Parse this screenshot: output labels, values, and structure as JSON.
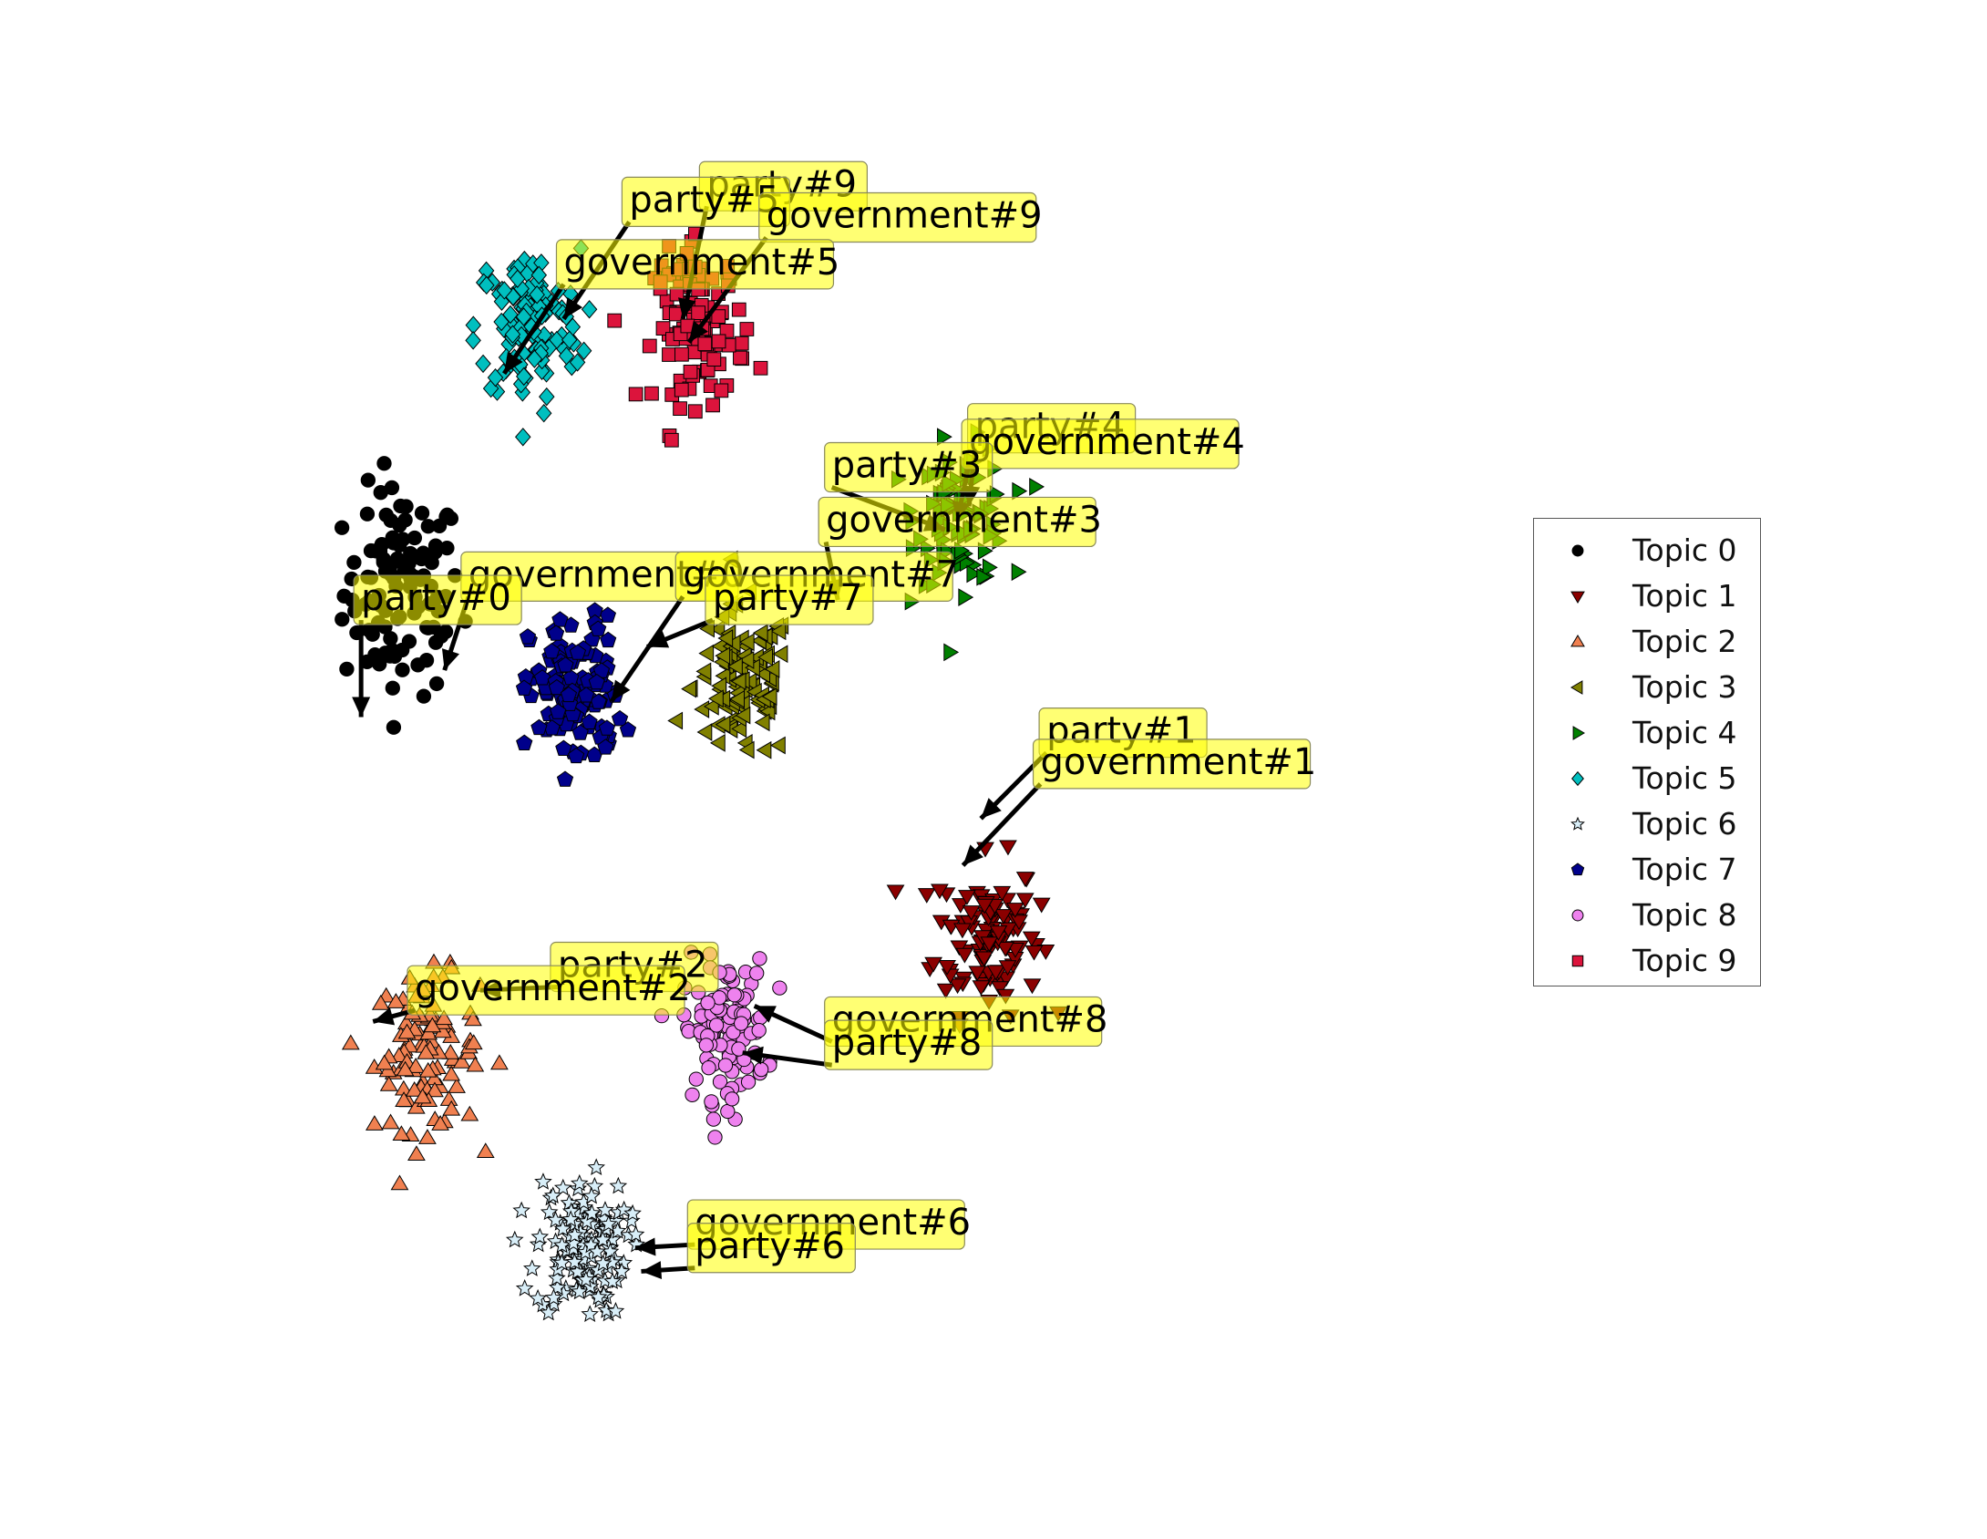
{
  "chart_data": {
    "type": "scatter",
    "title": "",
    "xlabel": "",
    "ylabel": "",
    "axes_visible": false,
    "grid": false,
    "xlim": [
      -52,
      52
    ],
    "ylim": [
      -40,
      40
    ],
    "legend": {
      "placement": "right"
    },
    "series": [
      {
        "name": "Topic 0",
        "marker": "circle",
        "color": "#000000",
        "center": [
          -33.5,
          12.0
        ],
        "spread": [
          4.5,
          6.0
        ],
        "count": 110
      },
      {
        "name": "Topic 1",
        "marker": "triangle-down",
        "color": "#8b0000",
        "center": [
          15.5,
          -10.0
        ],
        "spread": [
          4.0,
          4.5
        ],
        "count": 110
      },
      {
        "name": "Topic 2",
        "marker": "triangle-up",
        "color": "#f08050",
        "center": [
          -31.5,
          -17.5
        ],
        "spread": [
          4.0,
          4.5
        ],
        "count": 110
      },
      {
        "name": "Topic 3",
        "marker": "triangle-left",
        "color": "#808000",
        "center": [
          -5.0,
          6.0
        ],
        "spread": [
          3.8,
          4.5
        ],
        "count": 110
      },
      {
        "name": "Topic 4",
        "marker": "triangle-right",
        "color": "#008000",
        "center": [
          13.5,
          17.0
        ],
        "spread": [
          3.5,
          4.0
        ],
        "count": 100
      },
      {
        "name": "Topic 5",
        "marker": "diamond",
        "color": "#00bfbf",
        "center": [
          -23.0,
          29.0
        ],
        "spread": [
          4.0,
          4.5
        ],
        "count": 120
      },
      {
        "name": "Topic 6",
        "marker": "star",
        "color": "#d8eef8",
        "center": [
          -18.5,
          -30.0
        ],
        "spread": [
          3.5,
          4.0
        ],
        "count": 140
      },
      {
        "name": "Topic 7",
        "marker": "pentagon",
        "color": "#00008b",
        "center": [
          -19.0,
          5.5
        ],
        "spread": [
          3.5,
          4.5
        ],
        "count": 120
      },
      {
        "name": "Topic 8",
        "marker": "circle",
        "color": "#ee82ee",
        "center": [
          -6.5,
          -16.0
        ],
        "spread": [
          3.2,
          4.0
        ],
        "count": 110
      },
      {
        "name": "Topic 9",
        "marker": "square",
        "color": "#dc143c",
        "center": [
          -8.5,
          29.0
        ],
        "spread": [
          3.5,
          4.5
        ],
        "count": 110
      }
    ],
    "annotations": [
      {
        "text": "party#9",
        "xy": [
          -10,
          29.5
        ],
        "xytext": [
          -8,
          38.0
        ]
      },
      {
        "text": "party#5",
        "xy": [
          -20,
          29.5
        ],
        "xytext": [
          -14.5,
          37.0
        ]
      },
      {
        "text": "government#9",
        "xy": [
          -9.5,
          28.0
        ],
        "xytext": [
          -3,
          36.0
        ]
      },
      {
        "text": "government#5",
        "xy": [
          -25,
          26.0
        ],
        "xytext": [
          -20,
          33.0
        ]
      },
      {
        "text": "party#4",
        "xy": [
          14,
          17.5
        ],
        "xytext": [
          14.5,
          22.5
        ]
      },
      {
        "text": "government#4",
        "xy": [
          13,
          16.5
        ],
        "xytext": [
          14,
          21.5
        ]
      },
      {
        "text": "party#3",
        "xy": [
          12,
          16.0
        ],
        "xytext": [
          2.5,
          20.0
        ]
      },
      {
        "text": "government#3",
        "xy": [
          3,
          11.5
        ],
        "xytext": [
          2,
          16.5
        ]
      },
      {
        "text": "government#0",
        "xy": [
          -30,
          7.0
        ],
        "xytext": [
          -28,
          13.0
        ]
      },
      {
        "text": "party#0",
        "xy": [
          -37,
          4.0
        ],
        "xytext": [
          -37,
          11.5
        ]
      },
      {
        "text": "government#7",
        "xy": [
          -16,
          5.0
        ],
        "xytext": [
          -10,
          13.0
        ]
      },
      {
        "text": "party#7",
        "xy": [
          -13,
          8.5
        ],
        "xytext": [
          -7.5,
          11.5
        ]
      },
      {
        "text": "party#1",
        "xy": [
          15,
          -2.5
        ],
        "xytext": [
          20.5,
          3.0
        ]
      },
      {
        "text": "government#1",
        "xy": [
          13.5,
          -5.5
        ],
        "xytext": [
          20,
          1.0
        ]
      },
      {
        "text": "party#2",
        "xy": [
          -27,
          -13.5
        ],
        "xytext": [
          -20.5,
          -12.0
        ]
      },
      {
        "text": "government#2",
        "xy": [
          -36,
          -15.5
        ],
        "xytext": [
          -32.5,
          -13.5
        ]
      },
      {
        "text": "government#8",
        "xy": [
          -4,
          -14.5
        ],
        "xytext": [
          2.5,
          -15.5
        ]
      },
      {
        "text": "party#8",
        "xy": [
          -5,
          -17.5
        ],
        "xytext": [
          2.5,
          -17.0
        ]
      },
      {
        "text": "government#6",
        "xy": [
          -14,
          -30.0
        ],
        "xytext": [
          -9,
          -28.5
        ]
      },
      {
        "text": "party#6",
        "xy": [
          -13.5,
          -31.5
        ],
        "xytext": [
          -9,
          -30.0
        ]
      }
    ]
  },
  "legend_entries": [
    {
      "label": "Topic 0"
    },
    {
      "label": "Topic 1"
    },
    {
      "label": "Topic 2"
    },
    {
      "label": "Topic 3"
    },
    {
      "label": "Topic 4"
    },
    {
      "label": "Topic 5"
    },
    {
      "label": "Topic 6"
    },
    {
      "label": "Topic 7"
    },
    {
      "label": "Topic 8"
    },
    {
      "label": "Topic 9"
    }
  ]
}
